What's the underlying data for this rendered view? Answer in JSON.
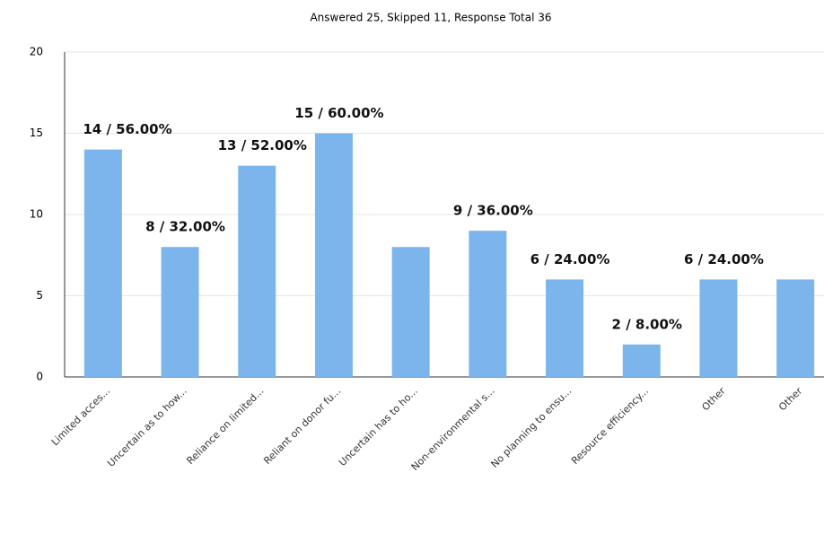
{
  "chart_data": {
    "type": "bar",
    "title": "Answered 25, Skipped 11, Response Total 36",
    "categories": [
      "Limited acces...",
      "Uncertain as to how...",
      "Reliance on limited...",
      "Reliant on donor fu...",
      "Uncertain has to ho...",
      "Non-environmental s...",
      "No planning to ensu...",
      "Resource efficiency...",
      "Other",
      "Other"
    ],
    "values": [
      14,
      8,
      13,
      15,
      8,
      9,
      6,
      2,
      6,
      6
    ],
    "value_labels": [
      "14 / 56.00%",
      "8 / 32.00%",
      "13 / 52.00%",
      "15 / 60.00%",
      null,
      "9 / 36.00%",
      "6 / 24.00%",
      "2 / 8.00%",
      "6 / 24.00%",
      null
    ],
    "color": "#7cb5ec",
    "ylim": [
      0,
      20
    ],
    "yticks": [
      0,
      5,
      10,
      15,
      20
    ],
    "grid": true
  }
}
